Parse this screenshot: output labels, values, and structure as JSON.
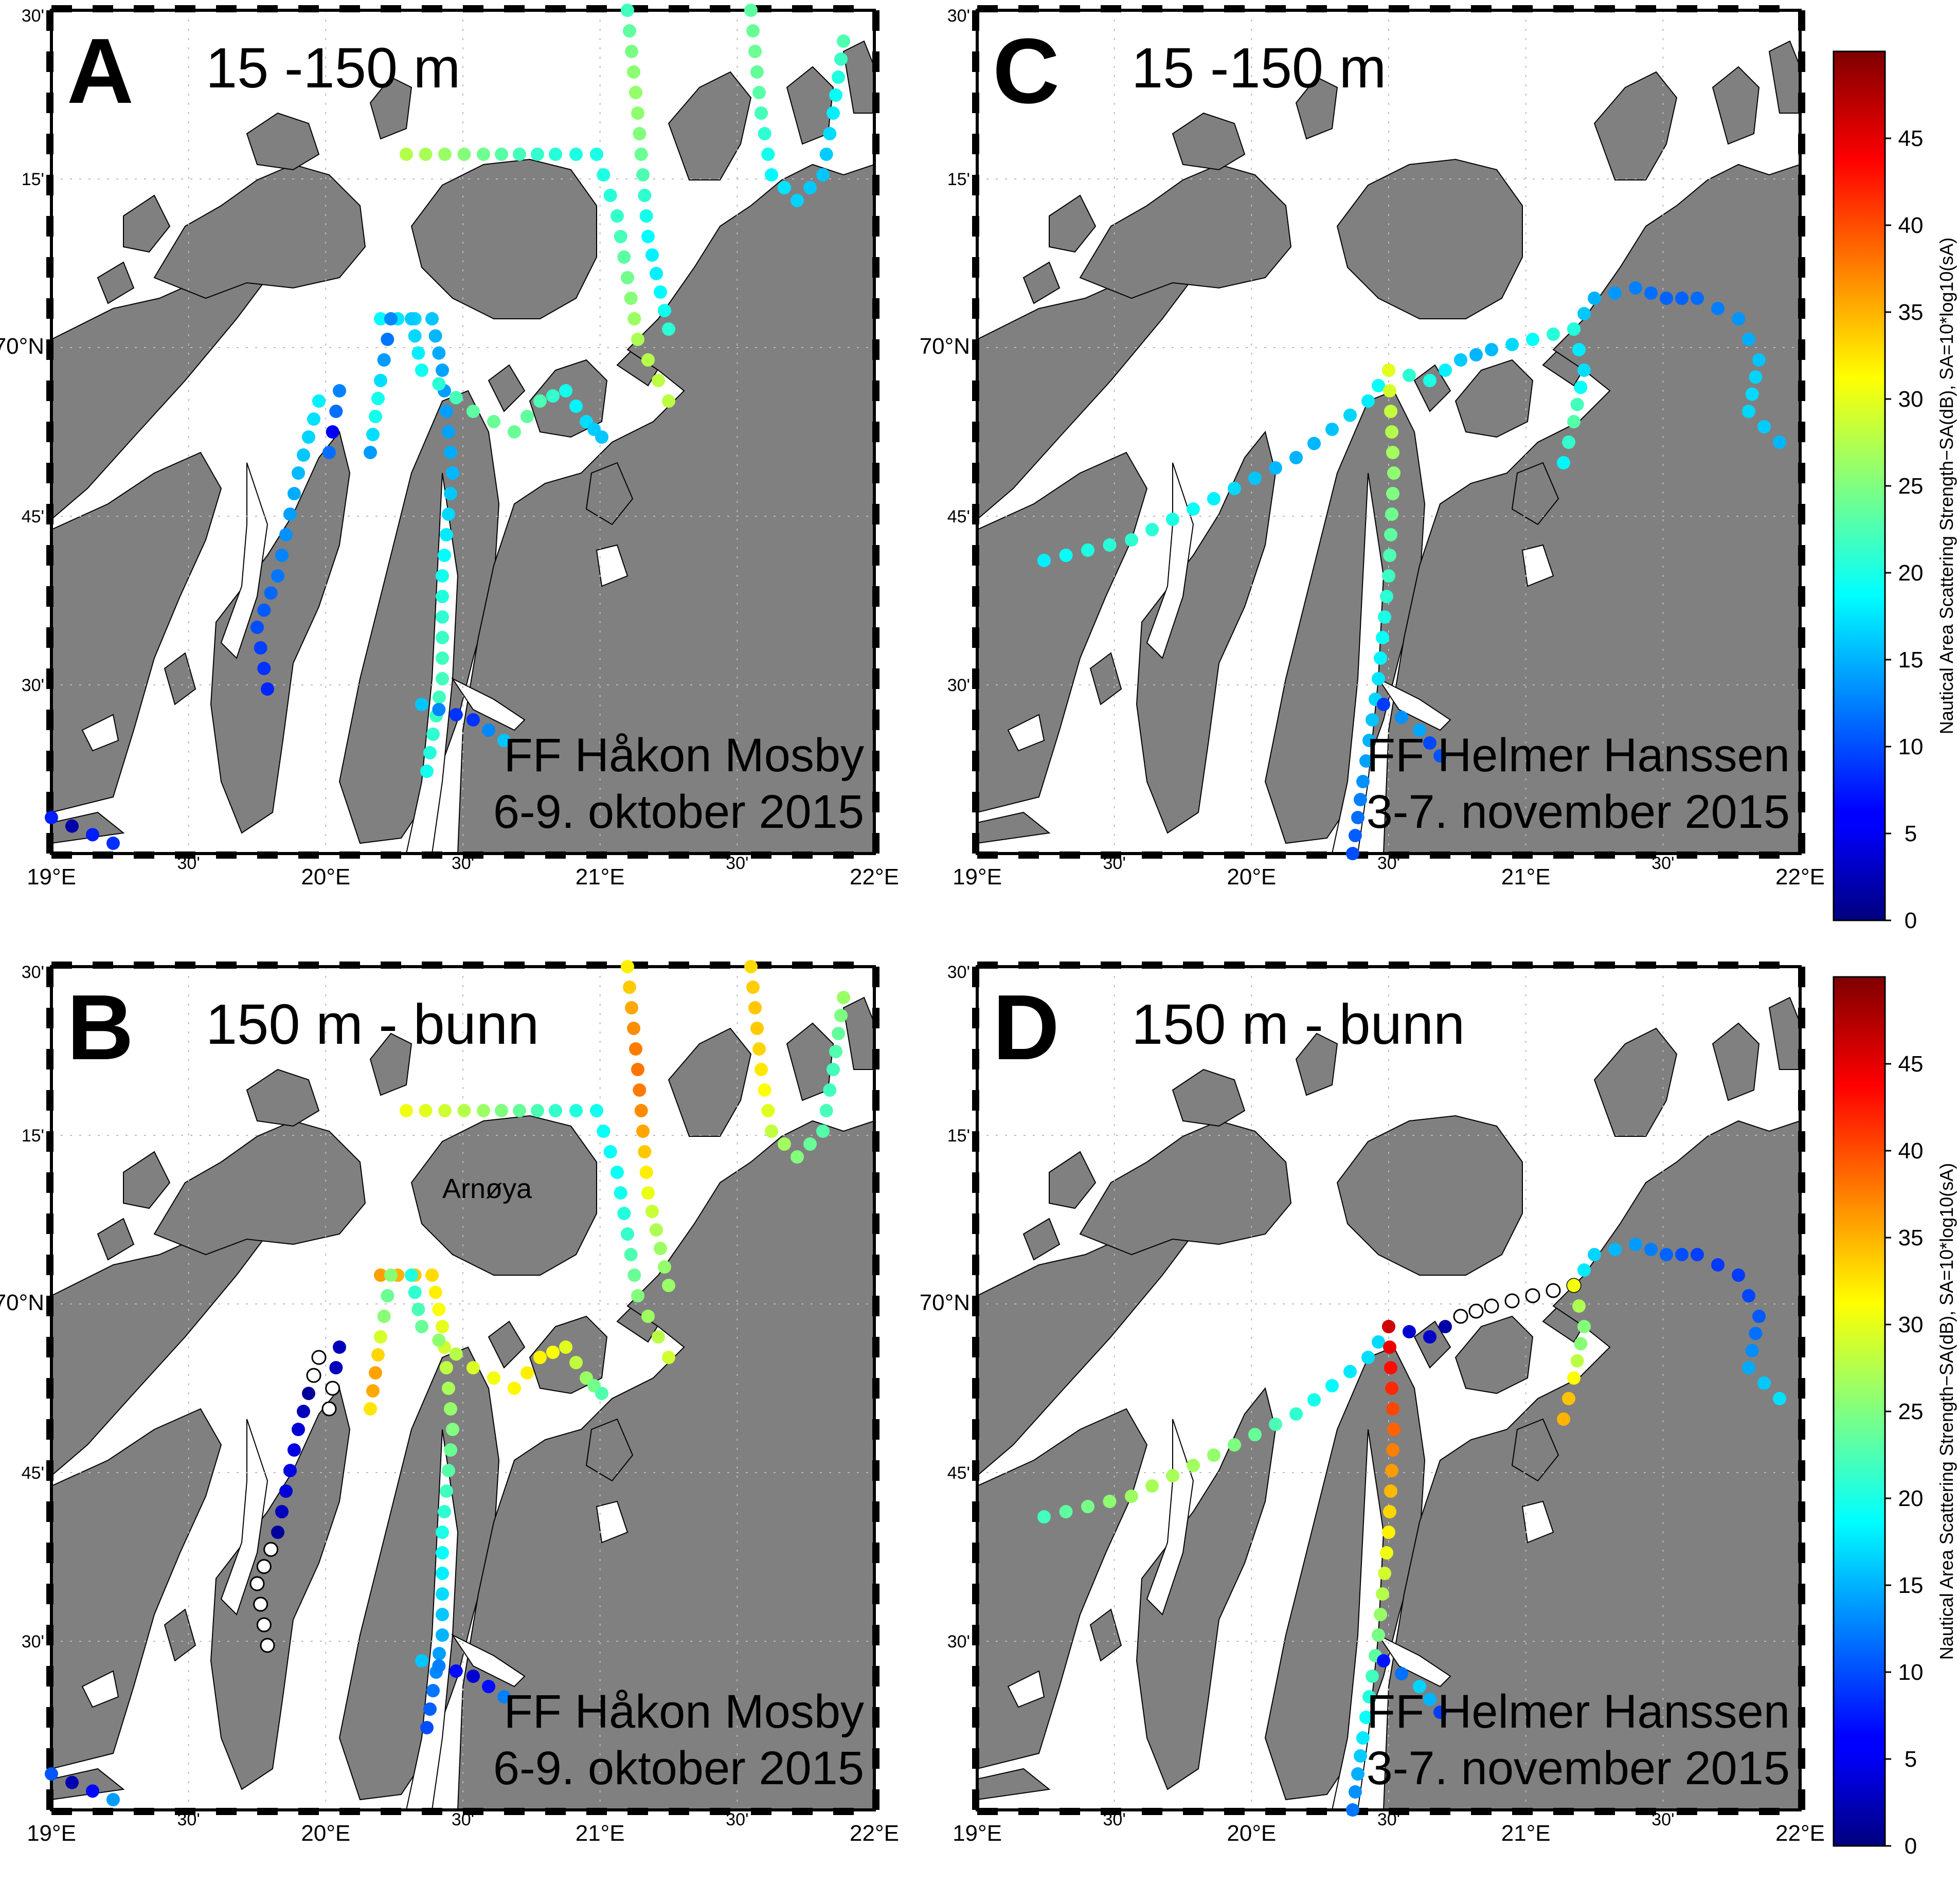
{
  "panels": [
    {
      "letter": "A",
      "depth_label": "15 -150 m",
      "vessel": "FF Håkon Mosby",
      "dates": "6-9. oktober 2015",
      "layer": "upper",
      "cruise": "mosby"
    },
    {
      "letter": "C",
      "depth_label": "15 -150 m",
      "vessel": "FF Helmer Hanssen",
      "dates": "3-7. november 2015",
      "layer": "upper",
      "cruise": "hanssen"
    },
    {
      "letter": "B",
      "depth_label": "150 m - bunn",
      "vessel": "FF Håkon Mosby",
      "dates": "6-9. oktober 2015",
      "layer": "lower",
      "cruise": "mosby",
      "place_label": "Arnøya"
    },
    {
      "letter": "D",
      "depth_label": "150 m - bunn",
      "vessel": "FF Helmer Hanssen",
      "dates": "3-7. november 2015",
      "layer": "lower",
      "cruise": "hanssen"
    }
  ],
  "lon_labels": [
    "19°E",
    "30'",
    "20°E",
    "30'",
    "21°E",
    "30'",
    "22°E"
  ],
  "lat_labels": [
    "30'",
    "15'",
    "70°N",
    "45'",
    "30'"
  ],
  "colorbar": {
    "title": "Nautical Area Scattering Strength−SA(dB), SA=10*log10(sA)",
    "ticks": [
      0,
      5,
      10,
      15,
      20,
      25,
      30,
      35,
      40,
      45
    ],
    "min": 0,
    "max": 50,
    "colormap": "jet"
  },
  "colors": {
    "land": "#808080",
    "water": "#ffffff",
    "frame": "#000000",
    "empty_marker": "#ffffff"
  }
}
